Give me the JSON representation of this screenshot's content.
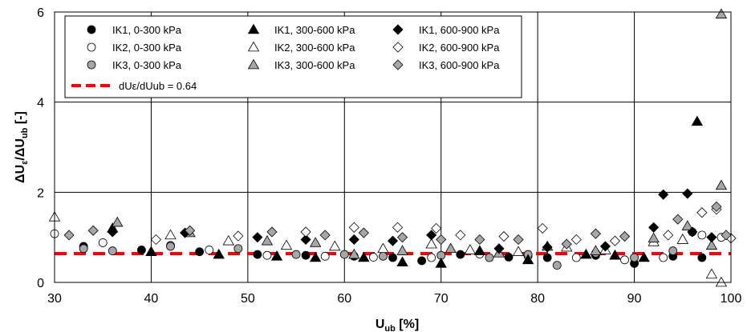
{
  "chart_data": {
    "type": "scatter",
    "xlim": [
      30,
      100
    ],
    "ylim": [
      0,
      6
    ],
    "xticks": [
      "30",
      "40",
      "50",
      "60",
      "70",
      "80",
      "90",
      "100"
    ],
    "yticks": [
      "0",
      "2",
      "4",
      "6"
    ],
    "xlabel": {
      "main": "U",
      "sub": "ub",
      "tail": " [%]"
    },
    "ylabel": {
      "main": "ΔU",
      "sub1": "ε",
      "mid": "/ΔU",
      "sub2": "ub",
      "tail": " [-]"
    },
    "grid": true,
    "legend_position": "top-left inside",
    "series": [
      {
        "name": "IK1, 0-300 kPa",
        "marker": "circle",
        "fill": "#000000",
        "points": [
          [
            33,
            0.8
          ],
          [
            39,
            0.72
          ],
          [
            45,
            0.68
          ],
          [
            51,
            0.62
          ],
          [
            56,
            0.6
          ],
          [
            61,
            0.58
          ],
          [
            65,
            0.55
          ],
          [
            68,
            0.48
          ],
          [
            72,
            0.62
          ],
          [
            77,
            0.56
          ],
          [
            81,
            0.55
          ],
          [
            86,
            0.6
          ],
          [
            90,
            0.42
          ],
          [
            94,
            0.58
          ],
          [
            97,
            0.55
          ]
        ]
      },
      {
        "name": "IK2, 0-300 kPa",
        "marker": "circle",
        "fill": "#ffffff",
        "points": [
          [
            30,
            1.08
          ],
          [
            35,
            0.88
          ],
          [
            42,
            0.82
          ],
          [
            46,
            0.72
          ],
          [
            52,
            0.6
          ],
          [
            58,
            0.58
          ],
          [
            63,
            0.56
          ],
          [
            69,
            0.55
          ],
          [
            74,
            0.63
          ],
          [
            79,
            0.58
          ],
          [
            84,
            0.55
          ],
          [
            89,
            0.5
          ],
          [
            93,
            0.55
          ],
          [
            97,
            1.05
          ],
          [
            99,
            1.0
          ]
        ]
      },
      {
        "name": "IK3, 0-300 kPa",
        "marker": "circle",
        "fill": "#a6a6a6",
        "points": [
          [
            33,
            0.75
          ],
          [
            36,
            0.7
          ],
          [
            42,
            0.8
          ],
          [
            49,
            0.75
          ],
          [
            55,
            0.62
          ],
          [
            60,
            0.62
          ],
          [
            64,
            0.58
          ],
          [
            70,
            0.6
          ],
          [
            75,
            0.55
          ],
          [
            79,
            0.62
          ],
          [
            82,
            0.38
          ],
          [
            86,
            0.65
          ],
          [
            90,
            0.55
          ],
          [
            94,
            0.7
          ],
          [
            96,
            1.12
          ]
        ]
      },
      {
        "name": "IK1, 300-600 kPa",
        "marker": "triangle",
        "fill": "#000000",
        "points": [
          [
            36,
            1.2
          ],
          [
            40,
            0.68
          ],
          [
            47,
            0.62
          ],
          [
            53,
            0.58
          ],
          [
            57,
            0.55
          ],
          [
            62,
            0.55
          ],
          [
            66,
            0.45
          ],
          [
            70,
            0.42
          ],
          [
            74,
            0.7
          ],
          [
            79,
            0.5
          ],
          [
            85,
            0.62
          ],
          [
            88,
            0.6
          ],
          [
            91,
            0.55
          ],
          [
            95,
            0.95
          ],
          [
            96.5,
            3.57
          ]
        ]
      },
      {
        "name": "IK2, 300-600 kPa",
        "marker": "triangle",
        "fill": "#ffffff",
        "points": [
          [
            30,
            1.45
          ],
          [
            42,
            1.05
          ],
          [
            48,
            0.92
          ],
          [
            54,
            0.82
          ],
          [
            59,
            0.8
          ],
          [
            64,
            0.75
          ],
          [
            69,
            0.85
          ],
          [
            73,
            0.72
          ],
          [
            78,
            0.68
          ],
          [
            83,
            0.78
          ],
          [
            87,
            0.72
          ],
          [
            92,
            0.9
          ],
          [
            95,
            0.95
          ],
          [
            98,
            0.18
          ],
          [
            99,
            0.0
          ]
        ]
      },
      {
        "name": "IK3, 300-600 kPa",
        "marker": "triangle",
        "fill": "#a6a6a6",
        "points": [
          [
            36.5,
            1.33
          ],
          [
            44,
            1.1
          ],
          [
            52,
            0.92
          ],
          [
            57,
            0.88
          ],
          [
            61,
            0.62
          ],
          [
            66,
            0.7
          ],
          [
            71,
            0.75
          ],
          [
            76,
            0.65
          ],
          [
            81,
            0.8
          ],
          [
            86,
            0.7
          ],
          [
            92,
            0.98
          ],
          [
            95.5,
            1.25
          ],
          [
            98,
            0.82
          ],
          [
            99,
            2.15
          ],
          [
            99,
            5.95
          ]
        ]
      },
      {
        "name": "IK1, 600-900 kPa",
        "marker": "diamond",
        "fill": "#000000",
        "points": [
          [
            36,
            1.12
          ],
          [
            43.5,
            1.1
          ],
          [
            51,
            1.0
          ],
          [
            56,
            0.95
          ],
          [
            61,
            0.95
          ],
          [
            65,
            0.92
          ],
          [
            69,
            1.05
          ],
          [
            76,
            0.75
          ],
          [
            81,
            0.78
          ],
          [
            87,
            0.8
          ],
          [
            92,
            1.22
          ],
          [
            93,
            1.95
          ],
          [
            95.5,
            1.97
          ],
          [
            96,
            1.12
          ],
          [
            98,
            1.0
          ]
        ]
      },
      {
        "name": "IK2, 600-900 kPa",
        "marker": "diamond",
        "fill": "#ffffff",
        "points": [
          [
            40.5,
            0.95
          ],
          [
            49,
            1.03
          ],
          [
            56,
            1.12
          ],
          [
            61,
            1.22
          ],
          [
            65.5,
            1.22
          ],
          [
            69.5,
            1.2
          ],
          [
            72,
            1.05
          ],
          [
            76.5,
            1.02
          ],
          [
            80.5,
            1.2
          ],
          [
            84,
            0.95
          ],
          [
            88,
            0.92
          ],
          [
            93.5,
            1.05
          ],
          [
            97,
            1.55
          ],
          [
            98.5,
            1.62
          ],
          [
            100,
            0.98
          ]
        ]
      },
      {
        "name": "IK3, 600-900 kPa",
        "marker": "diamond",
        "fill": "#a6a6a6",
        "points": [
          [
            31.5,
            1.05
          ],
          [
            34,
            1.15
          ],
          [
            44,
            1.15
          ],
          [
            52.5,
            1.12
          ],
          [
            58,
            1.05
          ],
          [
            62,
            1.1
          ],
          [
            66,
            1.0
          ],
          [
            70,
            0.95
          ],
          [
            74,
            0.95
          ],
          [
            78,
            0.95
          ],
          [
            83,
            0.85
          ],
          [
            86,
            1.08
          ],
          [
            89,
            1.02
          ],
          [
            94.5,
            1.4
          ],
          [
            98.5,
            1.68
          ],
          [
            99.5,
            1.05
          ]
        ]
      }
    ],
    "reference_line": {
      "name": "dUε/dUub = 0.64",
      "y": 0.64,
      "color": "#ff0000",
      "style": "dashed"
    }
  }
}
